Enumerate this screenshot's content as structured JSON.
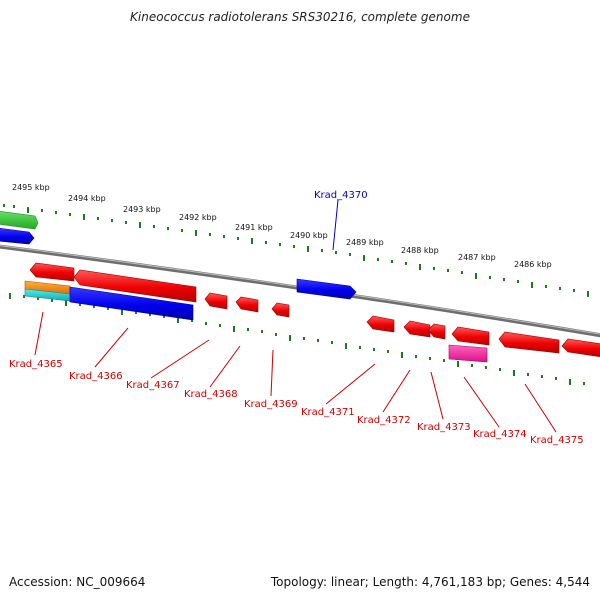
{
  "title": "Kineococcus radiotolerans SRS30216, complete genome",
  "accession": "Accession: NC_009664",
  "summary": "Topology: linear; Length: 4,761,183 bp; Genes: 4,544",
  "scale_labels": [
    "2495 kbp",
    "2494 kbp",
    "2493 kbp",
    "2492 kbp",
    "2491 kbp",
    "2490 kbp",
    "2489 kbp",
    "2488 kbp",
    "2487 kbp",
    "2486 kbp"
  ],
  "genes": [
    {
      "name": "Krad_4365",
      "color": "#cc0000"
    },
    {
      "name": "Krad_4366",
      "color": "#cc0000"
    },
    {
      "name": "Krad_4367",
      "color": "#cc0000"
    },
    {
      "name": "Krad_4368",
      "color": "#cc0000"
    },
    {
      "name": "Krad_4369",
      "color": "#cc0000"
    },
    {
      "name": "Krad_4370",
      "color": "#0000cc"
    },
    {
      "name": "Krad_4371",
      "color": "#cc0000"
    },
    {
      "name": "Krad_4372",
      "color": "#cc0000"
    },
    {
      "name": "Krad_4373",
      "color": "#cc0000"
    },
    {
      "name": "Krad_4374",
      "color": "#cc0000"
    },
    {
      "name": "Krad_4375",
      "color": "#cc0000"
    }
  ],
  "colors": {
    "forward_gene": "#ff0000",
    "reverse_gene": "#0000ff",
    "backbone": "#808080",
    "tick": "#1a7a1a",
    "rna_gene": "#ff3399",
    "orange_gene": "#ff8800",
    "cyan_gene": "#22cccc",
    "green_gene": "#33cc33"
  }
}
